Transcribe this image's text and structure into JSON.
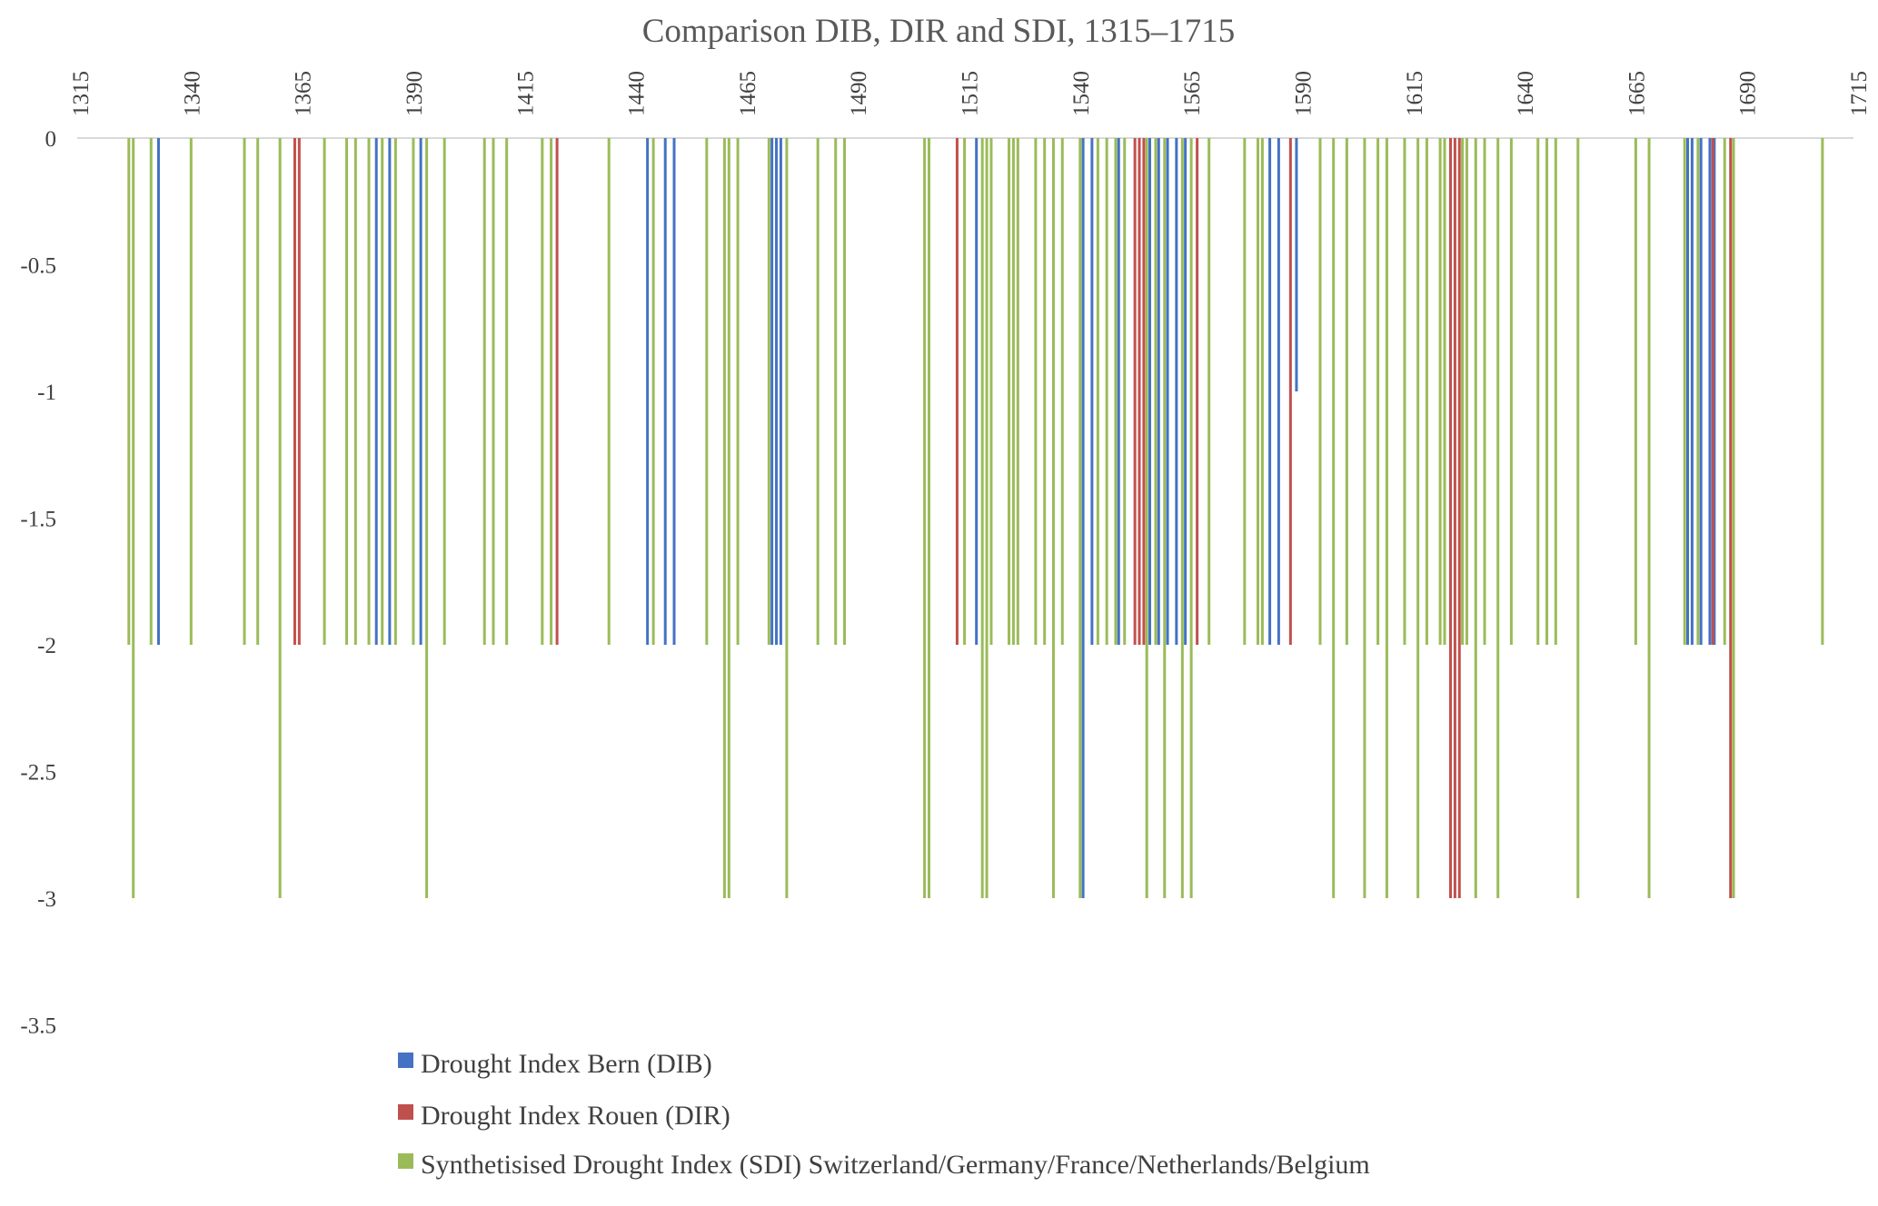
{
  "chart_data": {
    "type": "bar",
    "title": "Comparison DIB, DIR and SDI, 1315–1715",
    "xlabel": "",
    "ylabel": "",
    "xlim": [
      1315,
      1715
    ],
    "ylim": [
      -3.5,
      0
    ],
    "x_ticks": [
      "1315",
      "1340",
      "1365",
      "1390",
      "1415",
      "1440",
      "1465",
      "1490",
      "1515",
      "1540",
      "1565",
      "1590",
      "1615",
      "1640",
      "1665",
      "1690",
      "1715"
    ],
    "y_ticks": [
      "0",
      "-0.5",
      "-1",
      "-1.5",
      "-2",
      "-2.5",
      "-3",
      "-3.5"
    ],
    "x_axis_position": "top",
    "grid": false,
    "legend_position": "bottom",
    "series": [
      {
        "name": "Drought Index Bern (DIB)",
        "color": "#4472c4",
        "points": [
          [
            1333,
            -2
          ],
          [
            1382,
            -2
          ],
          [
            1385,
            -2
          ],
          [
            1392,
            -2
          ],
          [
            1443,
            -2
          ],
          [
            1447,
            -2
          ],
          [
            1449,
            -2
          ],
          [
            1471,
            -2
          ],
          [
            1472,
            -2
          ],
          [
            1473,
            -2
          ],
          [
            1517,
            -2
          ],
          [
            1541,
            -3
          ],
          [
            1543,
            -2
          ],
          [
            1549,
            -2
          ],
          [
            1556,
            -2
          ],
          [
            1558,
            -2
          ],
          [
            1560,
            -2
          ],
          [
            1562,
            -2
          ],
          [
            1564,
            -2
          ],
          [
            1583,
            -2
          ],
          [
            1585,
            -2
          ],
          [
            1589,
            -1
          ],
          [
            1677,
            -2
          ],
          [
            1678,
            -2
          ],
          [
            1680,
            -2
          ],
          [
            1682,
            -2
          ],
          [
            1683,
            -2
          ]
        ]
      },
      {
        "name": "Drought Index Rouen (DIR)",
        "color": "#c0504d",
        "points": [
          [
            1363,
            -2
          ],
          [
            1364,
            -2
          ],
          [
            1422,
            -2
          ],
          [
            1512,
            -2
          ],
          [
            1552,
            -2
          ],
          [
            1553,
            -2
          ],
          [
            1554,
            -2
          ],
          [
            1566,
            -2
          ],
          [
            1587,
            -2
          ],
          [
            1623,
            -3
          ],
          [
            1624,
            -3
          ],
          [
            1625,
            -3
          ],
          [
            1682,
            -2
          ],
          [
            1686,
            -3
          ]
        ]
      },
      {
        "name": "Synthetisised Drought Index (SDI) Switzerland/Germany/France/Netherlands/Belgium",
        "color": "#9bbb59",
        "points": [
          [
            1326,
            -2
          ],
          [
            1327,
            -3
          ],
          [
            1331,
            -2
          ],
          [
            1340,
            -2
          ],
          [
            1352,
            -2
          ],
          [
            1355,
            -2
          ],
          [
            1360,
            -3
          ],
          [
            1370,
            -2
          ],
          [
            1375,
            -2
          ],
          [
            1377,
            -2
          ],
          [
            1380,
            -2
          ],
          [
            1383,
            -2
          ],
          [
            1386,
            -2
          ],
          [
            1390,
            -2
          ],
          [
            1393,
            -3
          ],
          [
            1397,
            -2
          ],
          [
            1406,
            -2
          ],
          [
            1408,
            -2
          ],
          [
            1411,
            -2
          ],
          [
            1419,
            -2
          ],
          [
            1421,
            -2
          ],
          [
            1434,
            -2
          ],
          [
            1444,
            -2
          ],
          [
            1456,
            -2
          ],
          [
            1460,
            -3
          ],
          [
            1461,
            -3
          ],
          [
            1463,
            -2
          ],
          [
            1470,
            -2
          ],
          [
            1474,
            -3
          ],
          [
            1481,
            -2
          ],
          [
            1485,
            -2
          ],
          [
            1487,
            -2
          ],
          [
            1505,
            -3
          ],
          [
            1506,
            -3
          ],
          [
            1514,
            -2
          ],
          [
            1518,
            -3
          ],
          [
            1519,
            -3
          ],
          [
            1520,
            -2
          ],
          [
            1524,
            -2
          ],
          [
            1525,
            -2
          ],
          [
            1526,
            -2
          ],
          [
            1530,
            -2
          ],
          [
            1532,
            -2
          ],
          [
            1534,
            -3
          ],
          [
            1536,
            -2
          ],
          [
            1540,
            -3
          ],
          [
            1544,
            -2
          ],
          [
            1546,
            -2
          ],
          [
            1548,
            -2
          ],
          [
            1550,
            -2
          ],
          [
            1555,
            -3
          ],
          [
            1557,
            -2
          ],
          [
            1559,
            -3
          ],
          [
            1563,
            -3
          ],
          [
            1565,
            -3
          ],
          [
            1569,
            -2
          ],
          [
            1577,
            -2
          ],
          [
            1580,
            -2
          ],
          [
            1581,
            -2
          ],
          [
            1594,
            -2
          ],
          [
            1597,
            -3
          ],
          [
            1600,
            -2
          ],
          [
            1604,
            -3
          ],
          [
            1607,
            -2
          ],
          [
            1609,
            -3
          ],
          [
            1613,
            -2
          ],
          [
            1616,
            -3
          ],
          [
            1618,
            -2
          ],
          [
            1621,
            -2
          ],
          [
            1622,
            -2
          ],
          [
            1626,
            -2
          ],
          [
            1627,
            -2
          ],
          [
            1629,
            -3
          ],
          [
            1631,
            -2
          ],
          [
            1634,
            -3
          ],
          [
            1637,
            -2
          ],
          [
            1643,
            -2
          ],
          [
            1645,
            -2
          ],
          [
            1647,
            -2
          ],
          [
            1652,
            -3
          ],
          [
            1665,
            -2
          ],
          [
            1668,
            -3
          ],
          [
            1676,
            -2
          ],
          [
            1679,
            -2
          ],
          [
            1685,
            -2
          ],
          [
            1687,
            -3
          ],
          [
            1707,
            -2
          ]
        ]
      }
    ]
  }
}
